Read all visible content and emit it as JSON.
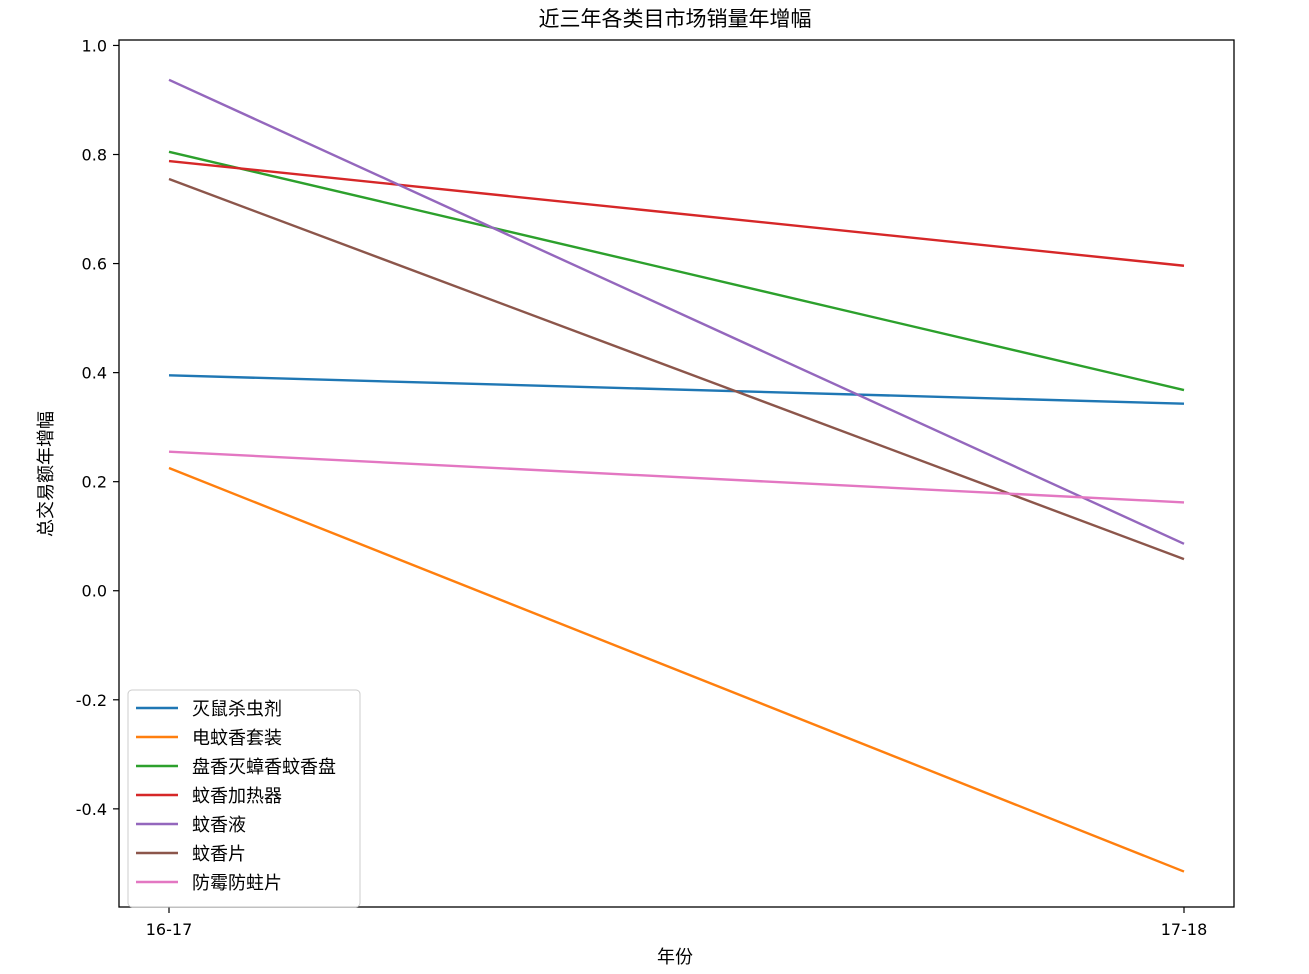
{
  "chart_data": {
    "type": "line",
    "title": "近三年各类目市场销量年增幅",
    "xlabel": "年份",
    "ylabel": "总交易额年增幅",
    "categories": [
      "16-17",
      "17-18"
    ],
    "ylim": [
      -0.58,
      1.01
    ],
    "yticks": [
      "1.0",
      "0.8",
      "0.6",
      "0.4",
      "0.2",
      "0.0",
      "-0.2",
      "-0.4"
    ],
    "ytick_values": [
      1.0,
      0.8,
      0.6,
      0.4,
      0.2,
      0.0,
      -0.2,
      -0.4
    ],
    "grid": false,
    "legend_position": "lower-left",
    "series": [
      {
        "name": "灭鼠杀虫剂",
        "values": [
          0.395,
          0.343
        ],
        "color": "#1f77b4"
      },
      {
        "name": "电蚊香套装",
        "values": [
          0.225,
          -0.515
        ],
        "color": "#ff7f0e"
      },
      {
        "name": "盘香灭蟑香蚊香盘",
        "values": [
          0.805,
          0.368
        ],
        "color": "#2ca02c"
      },
      {
        "name": "蚊香加热器",
        "values": [
          0.788,
          0.596
        ],
        "color": "#d62728"
      },
      {
        "name": "蚊香液",
        "values": [
          0.937,
          0.086
        ],
        "color": "#9467bd"
      },
      {
        "name": "蚊香片",
        "values": [
          0.755,
          0.058
        ],
        "color": "#8c564b"
      },
      {
        "name": "防霉防蛀片",
        "values": [
          0.255,
          0.162
        ],
        "color": "#e377c2"
      }
    ]
  }
}
